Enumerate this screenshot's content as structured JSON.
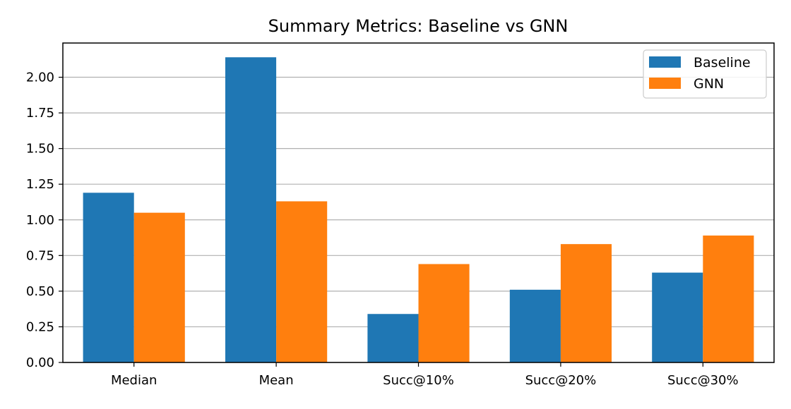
{
  "chart_data": {
    "type": "bar",
    "title": "Summary Metrics: Baseline vs GNN",
    "xlabel": "",
    "ylabel": "",
    "categories": [
      "Median",
      "Mean",
      "Succ@10%",
      "Succ@20%",
      "Succ@30%"
    ],
    "series": [
      {
        "name": "Baseline",
        "color": "#1f77b4",
        "values": [
          1.19,
          2.14,
          0.34,
          0.51,
          0.63
        ]
      },
      {
        "name": "GNN",
        "color": "#ff7f0e",
        "values": [
          1.05,
          1.13,
          0.69,
          0.83,
          0.89
        ]
      }
    ],
    "ylim": [
      0,
      2.24
    ],
    "yticks": [
      0.0,
      0.25,
      0.5,
      0.75,
      1.0,
      1.25,
      1.5,
      1.75,
      2.0
    ],
    "ytick_labels": [
      "0.00",
      "0.25",
      "0.50",
      "0.75",
      "1.00",
      "1.25",
      "1.50",
      "1.75",
      "2.00"
    ],
    "grid": "y",
    "legend_position": "top-right"
  }
}
